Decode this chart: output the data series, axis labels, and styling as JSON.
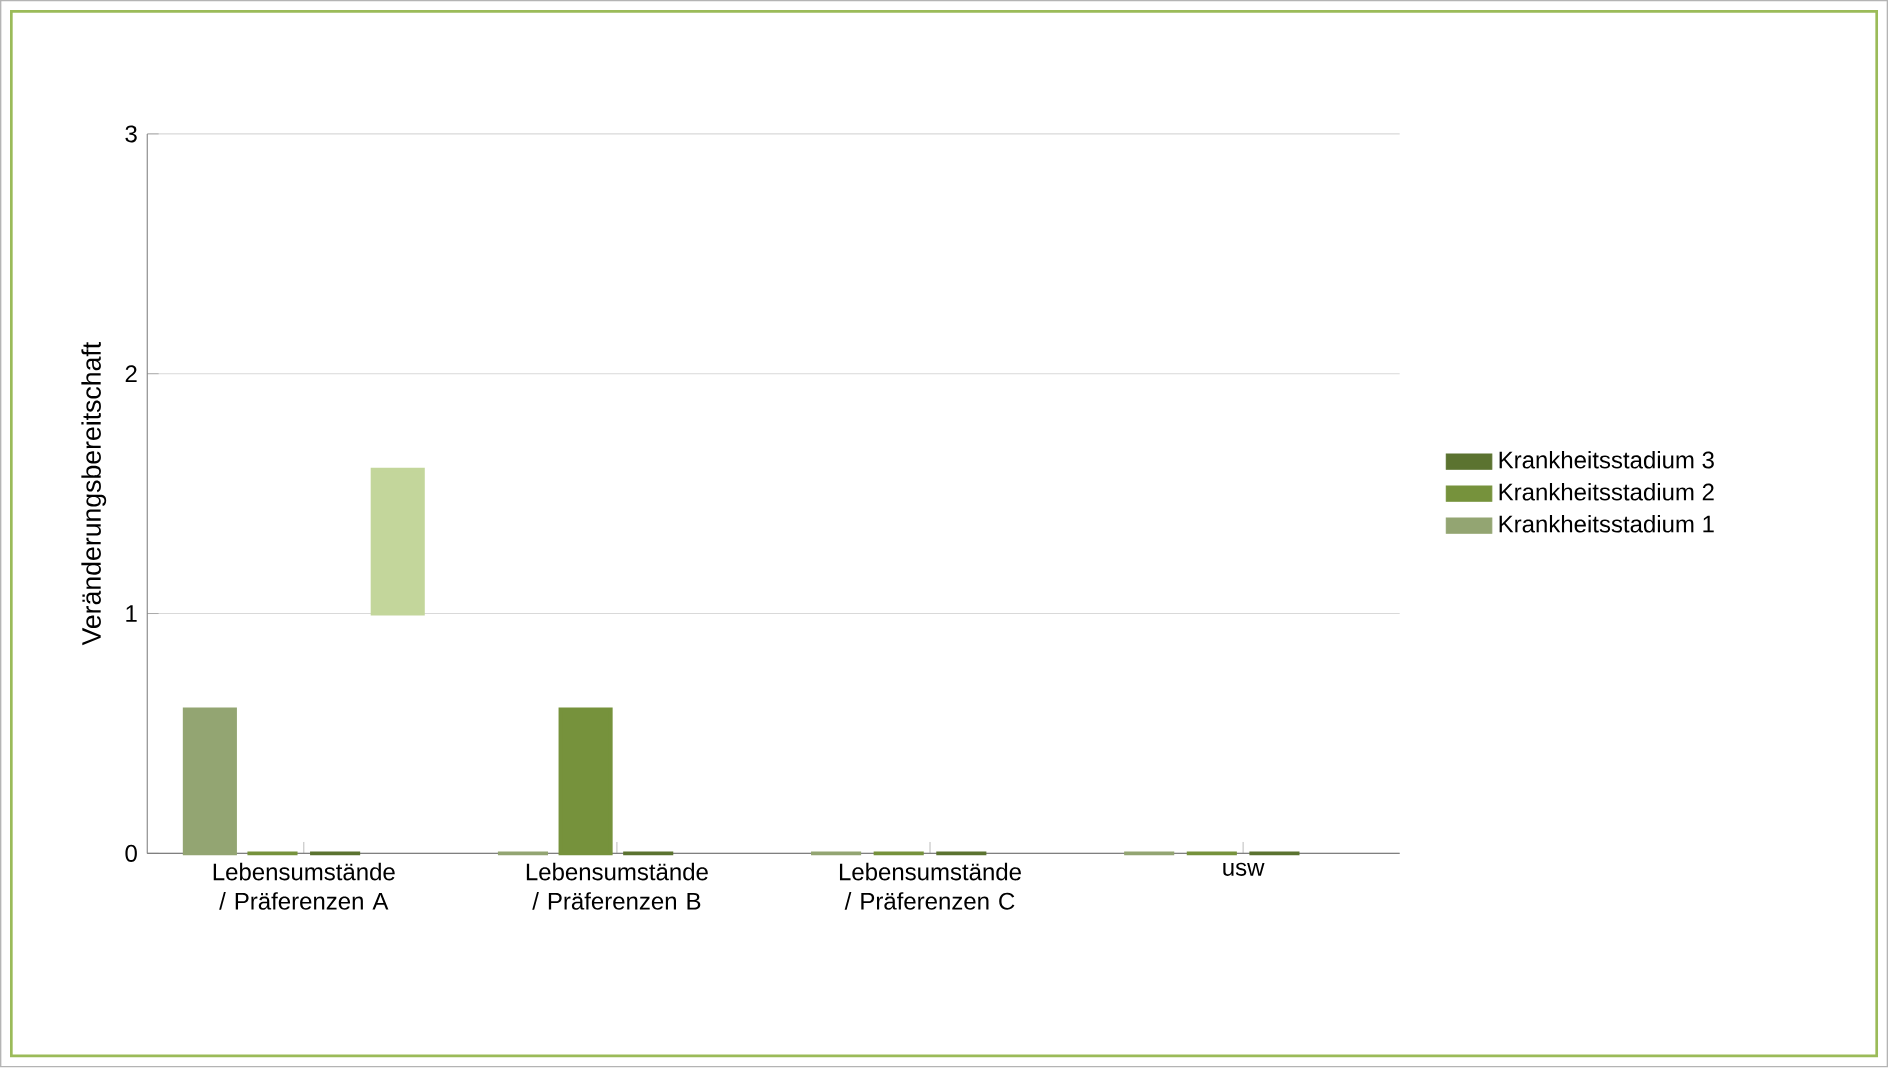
{
  "chart_data": {
    "type": "bar",
    "ylabel": "Veränderungsbereitschaft",
    "categories": [
      "Lebensumstände / Präferenzen A",
      "Lebensumstände / Präferenzen B",
      "Lebensumstände / Präferenzen C",
      "usw"
    ],
    "series": [
      {
        "name": "Krankheitsstadium 1",
        "color": "#93a572",
        "values": [
          0.6,
          0,
          0,
          0
        ]
      },
      {
        "name": "Krankheitsstadium 2",
        "color": "#76923c",
        "values": [
          0,
          0.6,
          0,
          0
        ]
      },
      {
        "name": "Krankheitsstadium 3",
        "color": "#5b7330",
        "values": [
          0,
          0,
          0,
          0
        ]
      },
      {
        "color": "#c3d69b",
        "base": [
          1.0,
          null,
          null,
          null
        ],
        "values": [
          0.6,
          null,
          null,
          null
        ]
      }
    ],
    "ylim": [
      0,
      3
    ],
    "yticks": [
      0,
      1,
      2,
      3
    ],
    "grid": "y",
    "legend": "right"
  }
}
